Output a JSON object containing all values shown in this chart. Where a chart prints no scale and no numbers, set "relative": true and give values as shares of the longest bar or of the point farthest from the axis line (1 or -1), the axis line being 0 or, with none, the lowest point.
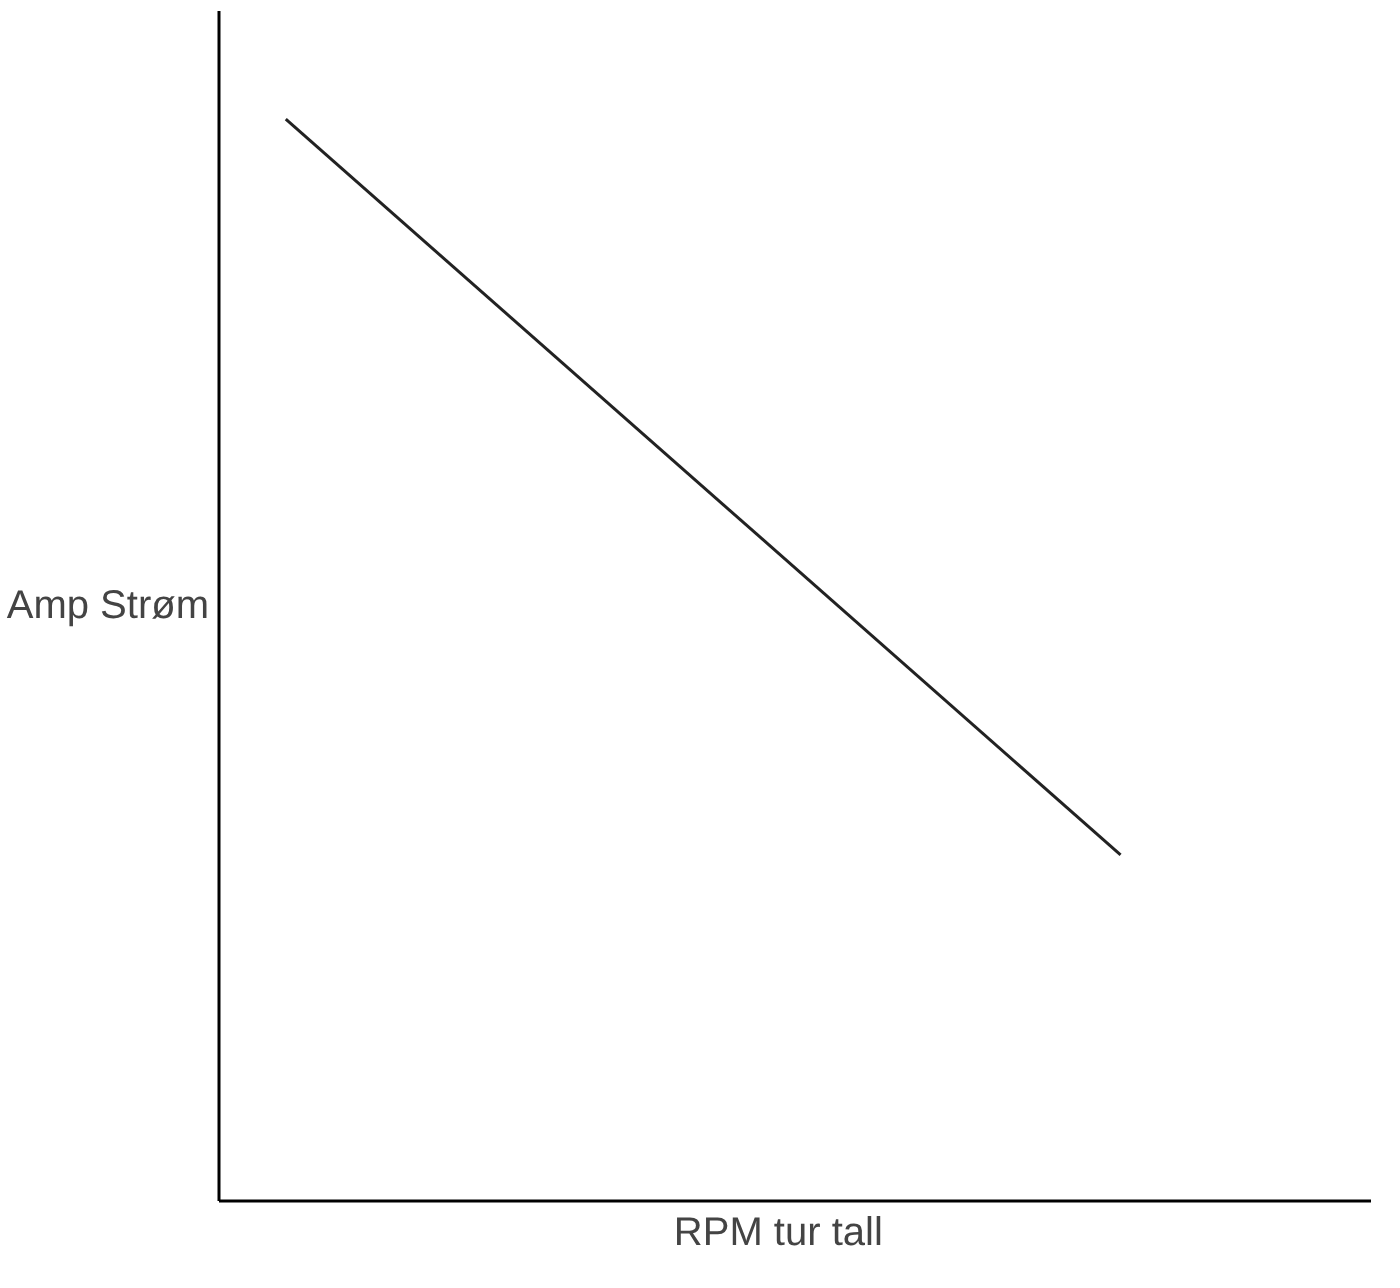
{
  "chart_data": {
    "type": "line",
    "relative": true,
    "xlabel": "RPM    tur tall",
    "ylabel": "Amp Strøm",
    "categories": [
      null,
      null
    ],
    "series": [
      {
        "color": "#222222",
        "values": [
          1,
          0.32
        ]
      }
    ],
    "marker": "none",
    "line_style": "solid"
  }
}
